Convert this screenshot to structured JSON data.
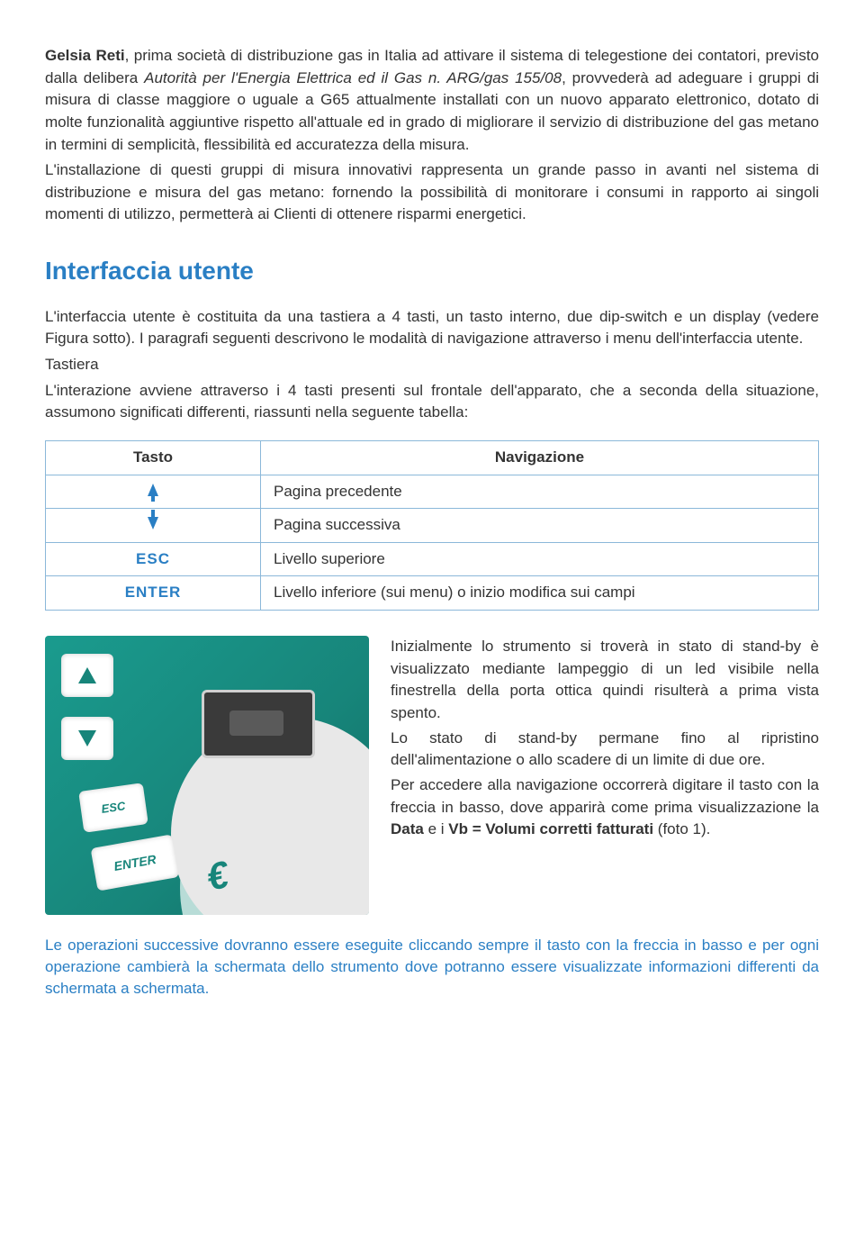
{
  "intro": {
    "p1_bold": "Gelsia Reti",
    "p1_rest": ", prima società di distribuzione gas in Italia ad attivare il sistema di telegestione dei contatori, previsto dalla delibera ",
    "p1_italic1": "Autorità per l'Energia Elettrica ed il Gas n. ARG/gas 155/08",
    "p1_rest2": ", provvederà ad adeguare i gruppi di misura di classe maggiore o uguale a G65 attualmente installati con un nuovo apparato elettronico, dotato di molte funzionalità aggiuntive rispetto all'attuale ed in grado di migliorare il servizio di distribuzione del gas metano in termini di semplicità, flessibilità ed accuratezza della misura.",
    "p2": "L'installazione di questi gruppi di misura innovativi rappresenta un grande passo in avanti nel sistema di distribuzione e misura del gas metano: fornendo la possibilità di monitorare i consumi in rapporto ai singoli momenti di utilizzo, permetterà ai Clienti di ottenere risparmi energetici."
  },
  "section": {
    "title": "Interfaccia utente",
    "p1": "L'interfaccia utente è costituita da una tastiera a 4 tasti, un tasto interno, due dip-switch e un display (vedere Figura sotto). I paragrafi seguenti descrivono le modalità di navigazione attraverso i menu dell'interfaccia utente.",
    "p2a": "Tastiera",
    "p2b": "L'interazione avviene attraverso i 4 tasti presenti sul frontale dell'apparato, che a seconda della situazione, assumono significati differenti, riassunti nella seguente tabella:"
  },
  "table": {
    "header_key": "Tasto",
    "header_nav": "Navigazione",
    "rows": [
      {
        "key_type": "arrow-up",
        "nav": "Pagina precedente"
      },
      {
        "key_type": "arrow-down",
        "nav": "Pagina successiva"
      },
      {
        "key_label": "ESC",
        "nav": "Livello superiore"
      },
      {
        "key_label": "ENTER",
        "nav": "Livello inferiore (sui menu) o inizio modifica sui campi"
      }
    ],
    "esc_label": "ESC",
    "enter_label": "ENTER",
    "colors": {
      "border": "#8bb8d9",
      "key_color": "#2a7fc4"
    }
  },
  "device": {
    "btn_esc": "ESC",
    "btn_enter": "ENTER",
    "teal_color": "#17857a"
  },
  "right": {
    "p1": "Inizialmente lo strumento si troverà in stato di stand-by è visualizzato mediante lampeggio di un led visibile nella finestrella della porta ottica quindi risulterà a prima vista spento.",
    "p2": "Lo stato di stand-by permane fino al ripristino dell'alimentazione o allo scadere di un limite di due ore.",
    "p3a": "Per accedere alla navigazione occorrerà digitare il tasto con la freccia in basso, dove apparirà come prima visualizzazione la ",
    "p3b": "Data",
    "p3c": " e i ",
    "p3d": "Vb = Volumi corretti fatturati",
    "p3e": " (foto 1)."
  },
  "footer": "Le operazioni successive dovranno essere eseguite cliccando sempre il tasto con la freccia in basso e per ogni operazione cambierà la schermata dello strumento dove potranno essere visualizzate informazioni differenti da schermata a schermata."
}
